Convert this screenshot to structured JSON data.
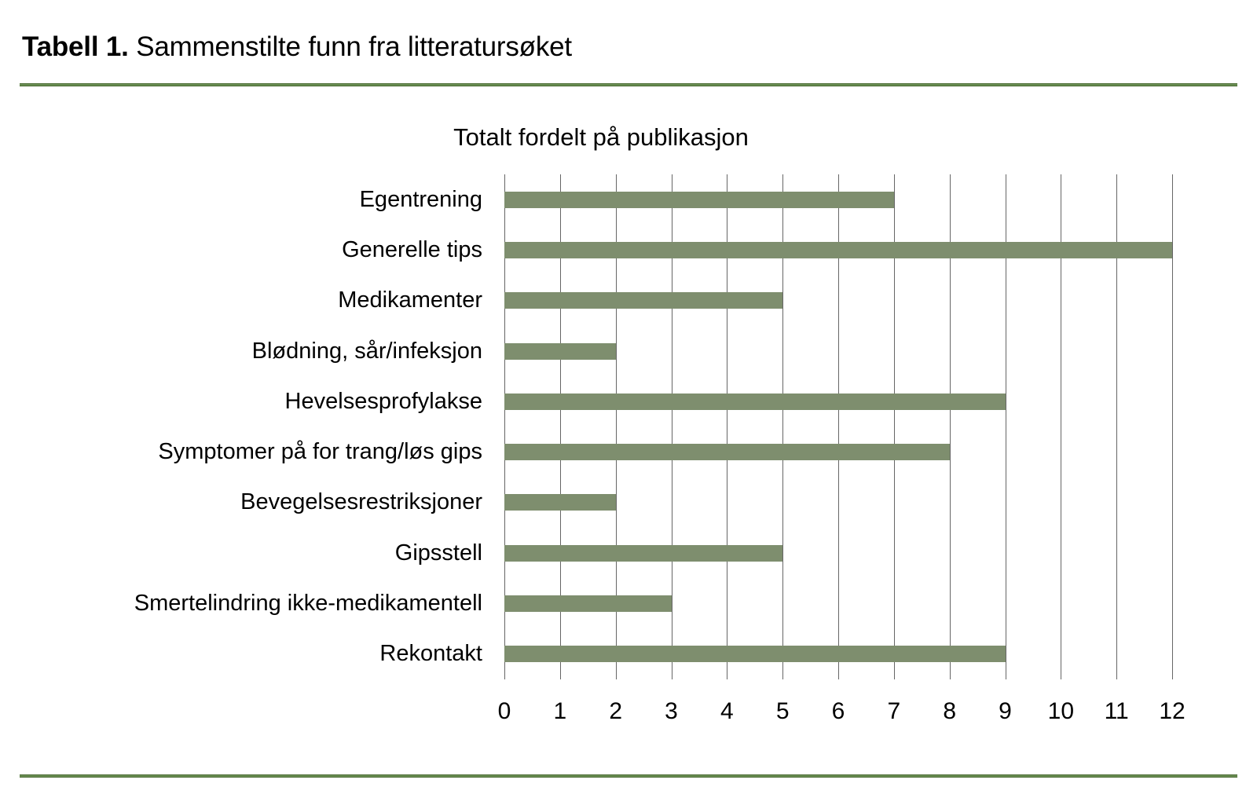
{
  "document": {
    "caption_bold": "Tabell 1.",
    "caption_rest": "Sammenstilte funn fra litteratursøket"
  },
  "colors": {
    "bar": "#7E8E6E",
    "gridline": "#666666",
    "rule": "#6B8F55",
    "rule_dark": "#47682F",
    "text": "#000000"
  },
  "chart_data": {
    "type": "bar",
    "orientation": "horizontal",
    "title": "Totalt fordelt på publikasjon",
    "categories": [
      "Egentrening",
      "Generelle tips",
      "Medikamenter",
      "Blødning, sår/infeksjon",
      "Hevelsesprofylakse",
      "Symptomer på for trang/løs gips",
      "Bevegelsesrestriksjoner",
      "Gipsstell",
      "Smertelindring ikke-medikamentell",
      "Rekontakt"
    ],
    "values": [
      7,
      12,
      5,
      2,
      9,
      8,
      2,
      5,
      3,
      9
    ],
    "xlabel": "",
    "ylabel": "",
    "xlim": [
      0,
      12
    ],
    "xticks": [
      0,
      1,
      2,
      3,
      4,
      5,
      6,
      7,
      8,
      9,
      10,
      11,
      12
    ],
    "grid": "vertical",
    "legend": false
  }
}
